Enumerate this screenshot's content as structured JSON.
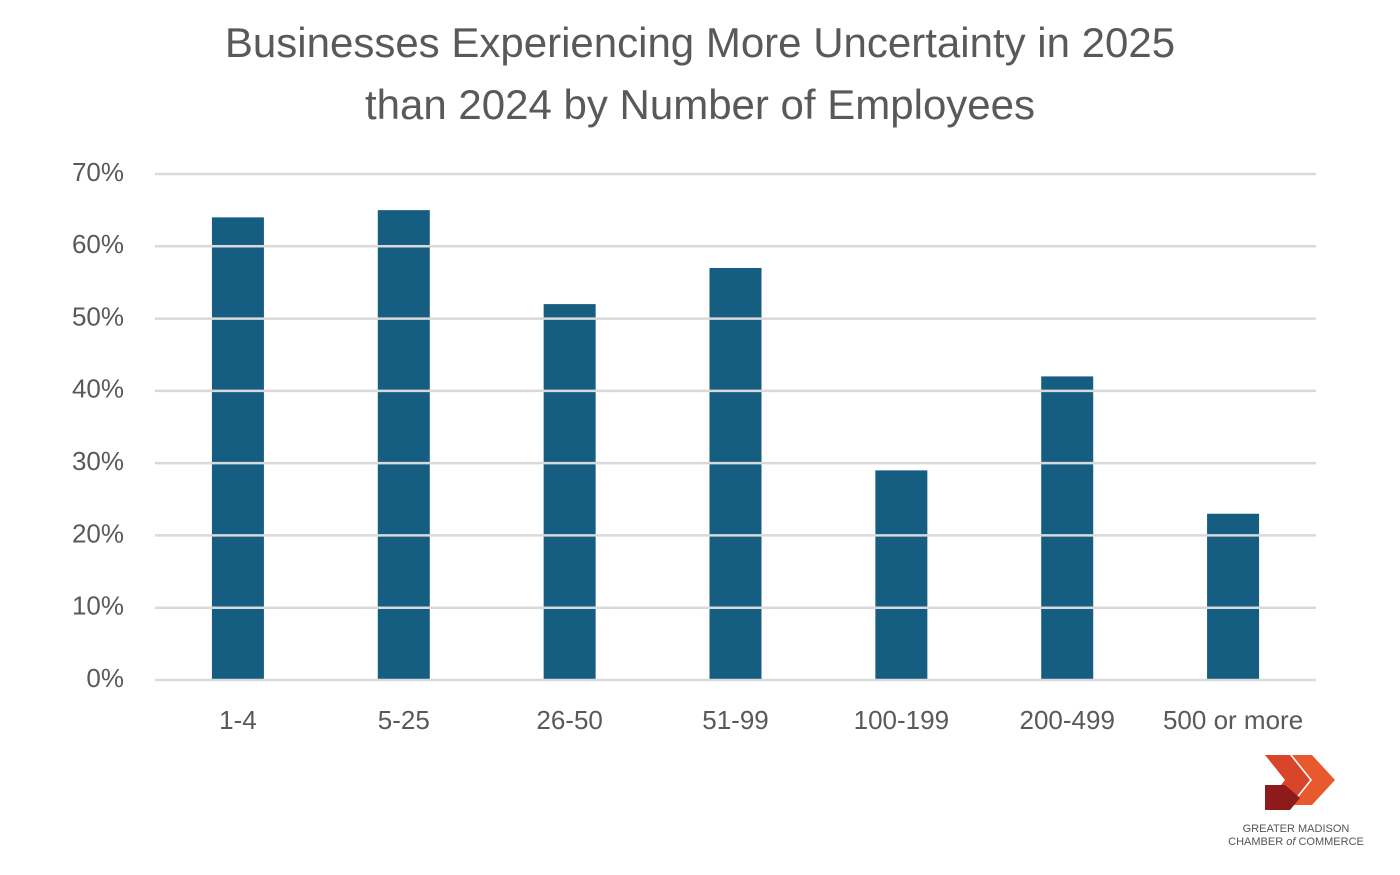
{
  "chart_data": {
    "type": "bar",
    "title": "Businesses Experiencing More Uncertainty in 2025 than 2024 by Number of Employees",
    "categories": [
      "1-4",
      "5-25",
      "26-50",
      "51-99",
      "100-199",
      "200-499",
      "500 or more"
    ],
    "values": [
      64,
      65,
      52,
      57,
      29,
      42,
      23
    ],
    "color": "#165e81",
    "ylim": [
      0,
      70
    ],
    "yticks": [
      {
        "value": 0,
        "label": "0%"
      },
      {
        "value": 10,
        "label": "10%"
      },
      {
        "value": 20,
        "label": "20%"
      },
      {
        "value": 30,
        "label": "30%"
      },
      {
        "value": 40,
        "label": "40%"
      },
      {
        "value": 50,
        "label": "50%"
      },
      {
        "value": 60,
        "label": "60%"
      },
      {
        "value": 70,
        "label": "70%"
      }
    ],
    "grid": true
  },
  "logo": {
    "line1": "GREATER MADISON",
    "word1": "CHAMBER",
    "word2": "of",
    "word3": "COMMERCE"
  }
}
